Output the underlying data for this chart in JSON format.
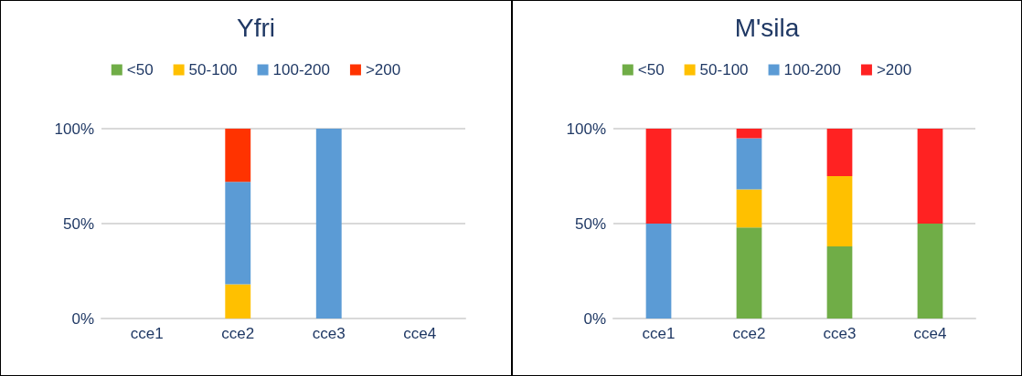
{
  "chart_data": [
    {
      "type": "bar",
      "title": "Yfri",
      "stacked": true,
      "categories": [
        "cce1",
        "cce2",
        "cce3",
        "cce4"
      ],
      "ylim": [
        0,
        100
      ],
      "yticks": [
        {
          "value": 0,
          "label": "0%"
        },
        {
          "value": 50,
          "label": "50%"
        },
        {
          "value": 100,
          "label": "100%"
        }
      ],
      "grid": "y",
      "legend": "top",
      "series": [
        {
          "name": "<50",
          "color": "#70ad47",
          "values": [
            0,
            0,
            0,
            0
          ]
        },
        {
          "name": "50-100",
          "color": "#ffc000",
          "values": [
            0,
            18,
            0,
            0
          ]
        },
        {
          "name": "100-200",
          "color": "#5b9bd5",
          "values": [
            0,
            54,
            100,
            0
          ]
        },
        {
          "name": ">200",
          "color": "#ff3300",
          "values": [
            0,
            28,
            0,
            0
          ]
        }
      ]
    },
    {
      "type": "bar",
      "title": "M'sila",
      "stacked": true,
      "categories": [
        "cce1",
        "cce2",
        "cce3",
        "cce4"
      ],
      "ylim": [
        0,
        100
      ],
      "yticks": [
        {
          "value": 0,
          "label": "0%"
        },
        {
          "value": 50,
          "label": "50%"
        },
        {
          "value": 100,
          "label": "100%"
        }
      ],
      "grid": "y",
      "legend": "top",
      "series": [
        {
          "name": "<50",
          "color": "#70ad47",
          "values": [
            0,
            48,
            38,
            50
          ]
        },
        {
          "name": "50-100",
          "color": "#ffc000",
          "values": [
            0,
            20,
            37,
            0
          ]
        },
        {
          "name": "100-200",
          "color": "#5b9bd5",
          "values": [
            50,
            27,
            0,
            0
          ]
        },
        {
          "name": ">200",
          "color": "#ff2222",
          "values": [
            50,
            5,
            25,
            50
          ]
        }
      ]
    }
  ]
}
